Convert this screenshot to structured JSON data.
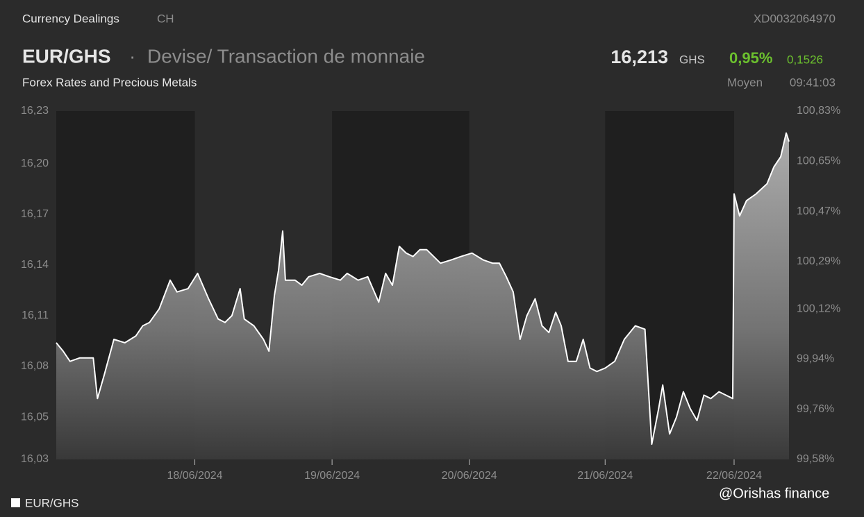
{
  "header": {
    "section": "Currency Dealings",
    "country": "CH",
    "isin": "XD0032064970",
    "symbol": "EUR/GHS",
    "separator": "·",
    "description": "Devise/ Transaction de monnaie",
    "market": "Forex Rates and Precious Metals",
    "price": "16,213",
    "currency": "GHS",
    "change_pct": "0,95%",
    "change_abs": "0,1526",
    "price_type": "Moyen",
    "time": "09:41:03"
  },
  "chart_data": {
    "type": "area",
    "x": [
      0,
      0.05,
      0.1,
      0.17,
      0.27,
      0.3,
      0.35,
      0.42,
      0.5,
      0.58,
      0.63,
      0.68,
      0.75,
      0.83,
      0.88,
      0.96,
      1.03,
      1.11,
      1.18,
      1.23,
      1.28,
      1.34,
      1.37,
      1.44,
      1.51,
      1.55,
      1.59,
      1.62,
      1.65,
      1.67,
      1.74,
      1.79,
      1.84,
      1.92,
      1.99,
      2.07,
      2.12,
      2.2,
      2.27,
      2.35,
      2.4,
      2.45,
      2.5,
      2.55,
      2.6,
      2.65,
      2.7,
      2.75,
      2.8,
      2.88,
      2.95,
      3.03,
      3.11,
      3.18,
      3.23,
      3.28,
      3.33,
      3.38,
      3.43,
      3.49,
      3.54,
      3.59,
      3.64,
      3.68,
      3.73,
      3.79,
      3.84,
      3.89,
      3.94,
      4.0,
      4.07,
      4.14,
      4.22,
      4.29,
      4.34,
      4.39,
      4.42,
      4.47,
      4.52,
      4.57,
      4.62,
      4.67,
      4.72,
      4.77,
      4.83,
      4.88,
      4.93,
      4.94,
      4.98,
      5.03,
      5.1,
      5.18,
      5.23,
      5.28,
      5.32,
      5.34
    ],
    "series": [
      {
        "name": "EUR/GHS",
        "color": "#ffffff",
        "values": [
          16.094,
          16.089,
          16.083,
          16.085,
          16.085,
          16.061,
          16.075,
          16.096,
          16.094,
          16.098,
          16.104,
          16.106,
          16.114,
          16.131,
          16.124,
          16.126,
          16.135,
          16.12,
          16.108,
          16.106,
          16.11,
          16.126,
          16.108,
          16.104,
          16.096,
          16.089,
          16.122,
          16.137,
          16.16,
          16.131,
          16.131,
          16.128,
          16.133,
          16.135,
          16.133,
          16.131,
          16.135,
          16.131,
          16.133,
          16.118,
          16.135,
          16.128,
          16.151,
          16.147,
          16.145,
          16.149,
          16.149,
          16.145,
          16.141,
          16.143,
          16.145,
          16.147,
          16.143,
          16.141,
          16.141,
          16.133,
          16.124,
          16.096,
          16.11,
          16.12,
          16.104,
          16.1,
          16.112,
          16.104,
          16.083,
          16.083,
          16.096,
          16.079,
          16.077,
          16.079,
          16.083,
          16.096,
          16.104,
          16.102,
          16.034,
          16.055,
          16.069,
          16.04,
          16.05,
          16.065,
          16.055,
          16.048,
          16.063,
          16.061,
          16.065,
          16.063,
          16.061,
          16.182,
          16.169,
          16.178,
          16.182,
          16.188,
          16.198,
          16.204,
          16.218,
          16.213
        ]
      }
    ],
    "xlim": [
      0,
      5.34
    ],
    "xticks": [
      {
        "value": 1.01,
        "label": "18/06/2024"
      },
      {
        "value": 2.01,
        "label": "19/06/2024"
      },
      {
        "value": 3.01,
        "label": "20/06/2024"
      },
      {
        "value": 4.0,
        "label": "21/06/2024"
      },
      {
        "value": 4.94,
        "label": "22/06/2024"
      }
    ],
    "ylim": [
      16.025,
      16.231
    ],
    "yticks": [
      {
        "value": 16.231,
        "label": "16,23"
      },
      {
        "value": 16.2,
        "label": "16,20"
      },
      {
        "value": 16.17,
        "label": "16,17"
      },
      {
        "value": 16.14,
        "label": "16,14"
      },
      {
        "value": 16.11,
        "label": "16,11"
      },
      {
        "value": 16.08,
        "label": "16,08"
      },
      {
        "value": 16.05,
        "label": "16,05"
      },
      {
        "value": 16.025,
        "label": "16,03"
      }
    ],
    "y2lim": [
      99.58,
      100.83
    ],
    "y2ticks": [
      {
        "value": 100.83,
        "label": "100,83%"
      },
      {
        "value": 100.65,
        "label": "100,65%"
      },
      {
        "value": 100.47,
        "label": "100,47%"
      },
      {
        "value": 100.29,
        "label": "100,29%"
      },
      {
        "value": 100.12,
        "label": "100,12%"
      },
      {
        "value": 99.94,
        "label": "99,94%"
      },
      {
        "value": 99.76,
        "label": "99,76%"
      },
      {
        "value": 99.58,
        "label": "99,58%"
      }
    ]
  },
  "watermark": "@Orishas finance"
}
